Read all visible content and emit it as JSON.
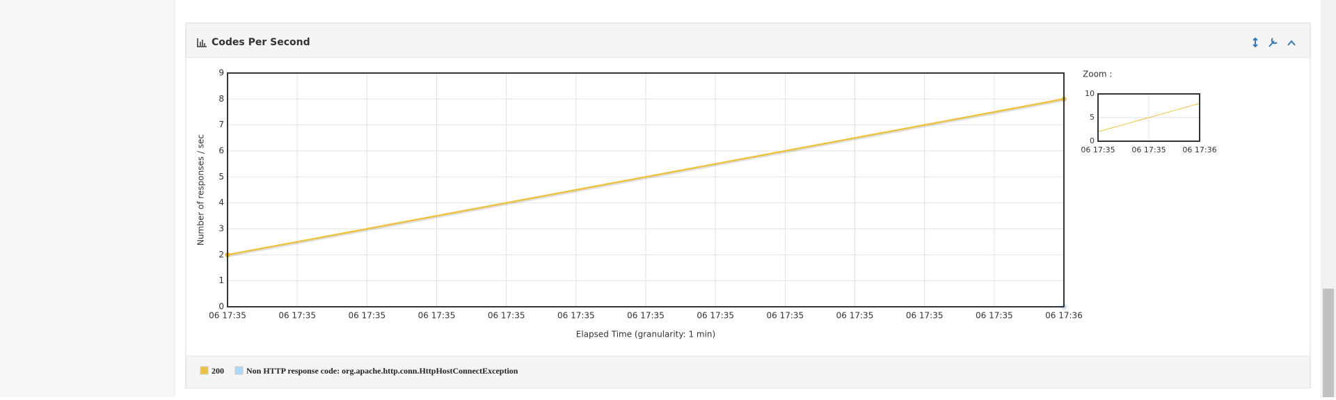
{
  "panel_title": "Codes Per Second",
  "chart_data": {
    "type": "line",
    "y_label": "Number of responses / sec",
    "x_label": "Elapsed Time (granularity: 1 min)",
    "categories": [
      "06 17:35",
      "06 17:35",
      "06 17:35",
      "06 17:35",
      "06 17:35",
      "06 17:35",
      "06 17:35",
      "06 17:35",
      "06 17:35",
      "06 17:35",
      "06 17:35",
      "06 17:35",
      "06 17:36"
    ],
    "ylim": [
      0,
      9
    ],
    "yticks": [
      0,
      1,
      2,
      3,
      4,
      5,
      6,
      7,
      8,
      9
    ],
    "grid": true,
    "series": [
      {
        "name": "200",
        "color": "#edc240",
        "values": [
          2,
          2.5,
          3,
          3.5,
          4,
          4.5,
          5,
          5.5,
          6,
          6.5,
          7,
          7.5,
          8
        ]
      },
      {
        "name": "Non HTTP response code: org.apache.http.conn.HttpHostConnectException",
        "color": "#afd8f8",
        "values": [
          null,
          null,
          null,
          null,
          null,
          null,
          null,
          null,
          null,
          null,
          null,
          null,
          0
        ]
      }
    ],
    "zoom": {
      "label": "Zoom :",
      "ylim": [
        0,
        10
      ],
      "yticks": [
        0,
        5,
        10
      ],
      "xticks": [
        "06 17:35",
        "06 17:35",
        "06 17:36"
      ]
    }
  }
}
